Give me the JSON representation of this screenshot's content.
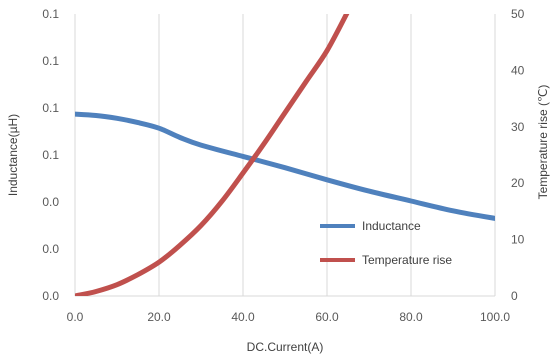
{
  "chart_data": {
    "type": "line",
    "xlabel": "DC.Current(A)",
    "ylabel_left": "Inductance(µH)",
    "ylabel_right": "Temperature rise (℃)",
    "x_ticks": [
      "0.0",
      "20.0",
      "40.0",
      "60.0",
      "80.0",
      "100.0"
    ],
    "y_left_ticks": [
      "0.0",
      "0.0",
      "0.0",
      "0.1",
      "0.1",
      "0.1",
      "0.1"
    ],
    "y_right_ticks": [
      "0",
      "10",
      "20",
      "30",
      "40",
      "50"
    ],
    "xlim": [
      0,
      100
    ],
    "ylim_right": [
      0,
      50
    ],
    "ylim_left_normalized": [
      0,
      1
    ],
    "grid": "vertical",
    "legend_position": "bottom-right",
    "series": [
      {
        "name": "Inductance",
        "axis": "left",
        "color": "#4f81bd",
        "x": [
          0,
          5,
          10,
          15,
          20,
          25,
          30,
          40,
          50,
          60,
          70,
          80,
          90,
          100
        ],
        "y": [
          0.645,
          0.64,
          0.63,
          0.615,
          0.595,
          0.562,
          0.535,
          0.495,
          0.455,
          0.412,
          0.372,
          0.337,
          0.302,
          0.275
        ]
      },
      {
        "name": "Temperature rise",
        "axis": "right",
        "color": "#c0504d",
        "x": [
          0,
          5,
          10,
          15,
          20,
          25,
          30,
          35,
          40,
          45,
          50,
          55,
          60,
          65
        ],
        "y": [
          0,
          0.8,
          2.0,
          3.8,
          6.0,
          9.0,
          12.5,
          16.8,
          21.8,
          27.0,
          32.5,
          38.0,
          43.5,
          50.5
        ]
      }
    ]
  }
}
